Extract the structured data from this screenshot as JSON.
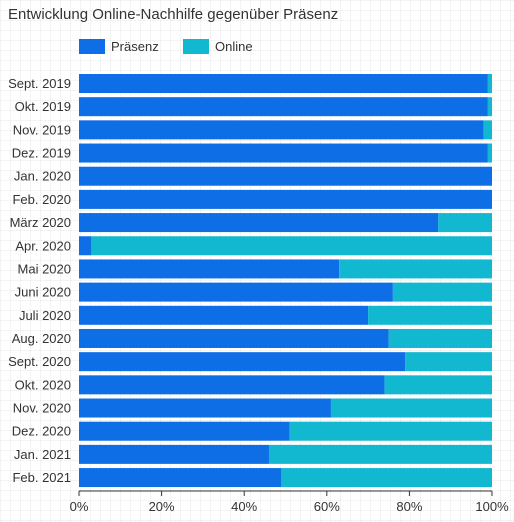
{
  "chart_data": {
    "type": "bar",
    "orientation": "horizontal",
    "stacked": true,
    "title": "Entwicklung Online-Nachhilfe gegenüber Präsenz",
    "xlabel": "",
    "ylabel": "",
    "xlim": [
      0,
      100
    ],
    "x_ticks": [
      "0%",
      "20%",
      "40%",
      "60%",
      "80%",
      "100%"
    ],
    "grid": false,
    "legend_position": "top-left",
    "categories": [
      "Sept. 2019",
      "Okt. 2019",
      "Nov. 2019",
      "Dez. 2019",
      "Jan. 2020",
      "Feb. 2020",
      "März 2020",
      "Apr. 2020",
      "Mai 2020",
      "Juni 2020",
      "Juli 2020",
      "Aug. 2020",
      "Sept. 2020",
      "Okt. 2020",
      "Nov. 2020",
      "Dez. 2020",
      "Jan. 2021",
      "Feb. 2021"
    ],
    "series": [
      {
        "name": "Präsenz",
        "color": "#0d6ee6",
        "values": [
          99,
          99,
          98,
          99,
          100,
          100,
          87,
          3,
          63,
          76,
          70,
          75,
          79,
          74,
          61,
          51,
          46,
          49
        ]
      },
      {
        "name": "Online",
        "color": "#12b8d0",
        "values": [
          1,
          1,
          2,
          1,
          0,
          0,
          13,
          97,
          37,
          24,
          30,
          25,
          21,
          26,
          39,
          49,
          54,
          51
        ]
      }
    ]
  }
}
